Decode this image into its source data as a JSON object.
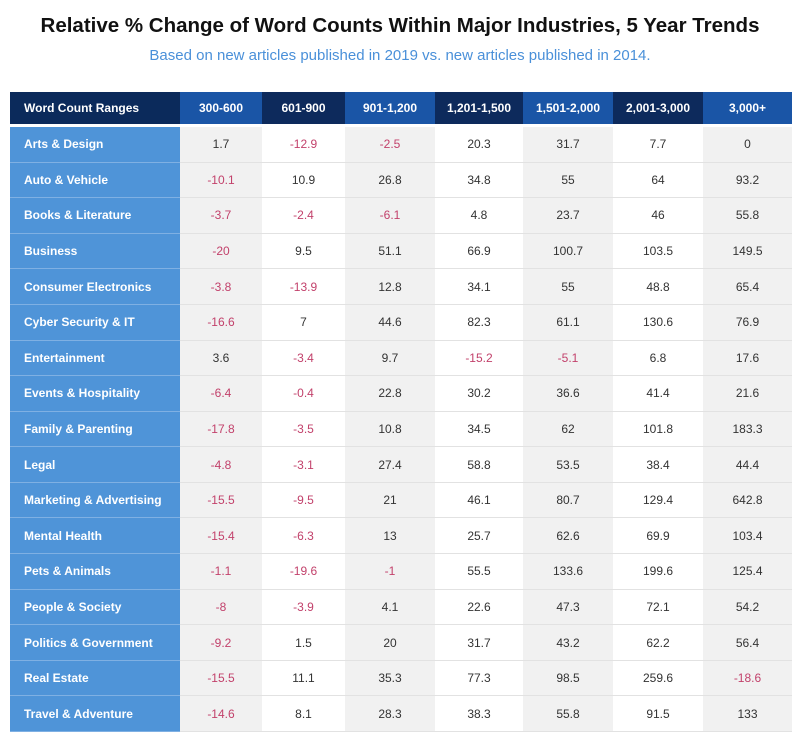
{
  "title": "Relative % Change of Word Counts Within Major Industries, 5 Year Trends",
  "subtitle": "Based on new articles published in 2019 vs. new articles published in 2014.",
  "table": {
    "header": [
      "Word Count Ranges",
      "300-600",
      "601-900",
      "901-1,200",
      "1,201-1,500",
      "1,501-2,000",
      "2,001-3,000",
      "3,000+"
    ],
    "rows": [
      [
        "Arts & Design",
        1.7,
        -12.9,
        -2.5,
        20.3,
        31.7,
        7.7,
        0
      ],
      [
        "Auto & Vehicle",
        -10.1,
        10.9,
        26.8,
        34.8,
        55,
        64,
        93.2
      ],
      [
        "Books & Literature",
        -3.7,
        -2.4,
        -6.1,
        4.8,
        23.7,
        46,
        55.8
      ],
      [
        "Business",
        -20,
        9.5,
        51.1,
        66.9,
        100.7,
        103.5,
        149.5
      ],
      [
        "Consumer Electronics",
        -3.8,
        -13.9,
        12.8,
        34.1,
        55,
        48.8,
        65.4
      ],
      [
        "Cyber Security & IT",
        -16.6,
        7,
        44.6,
        82.3,
        61.1,
        130.6,
        76.9
      ],
      [
        "Entertainment",
        3.6,
        -3.4,
        9.7,
        -15.2,
        -5.1,
        6.8,
        17.6
      ],
      [
        "Events & Hospitality",
        -6.4,
        -0.4,
        22.8,
        30.2,
        36.6,
        41.4,
        21.6
      ],
      [
        "Family & Parenting",
        -17.8,
        -3.5,
        10.8,
        34.5,
        62,
        101.8,
        183.3
      ],
      [
        "Legal",
        -4.8,
        -3.1,
        27.4,
        58.8,
        53.5,
        38.4,
        44.4
      ],
      [
        "Marketing & Advertising",
        -15.5,
        -9.5,
        21,
        46.1,
        80.7,
        129.4,
        642.8
      ],
      [
        "Mental Health",
        -15.4,
        -6.3,
        13,
        25.7,
        62.6,
        69.9,
        103.4
      ],
      [
        "Pets & Animals",
        -1.1,
        -19.6,
        -1,
        55.5,
        133.6,
        199.6,
        125.4
      ],
      [
        "People & Society",
        -8,
        -3.9,
        4.1,
        22.6,
        47.3,
        72.1,
        54.2
      ],
      [
        "Politics & Government",
        -9.2,
        1.5,
        20,
        31.7,
        43.2,
        62.2,
        56.4
      ],
      [
        "Real Estate",
        -15.5,
        11.1,
        35.3,
        77.3,
        98.5,
        259.6,
        -18.6
      ],
      [
        "Travel & Adventure",
        -14.6,
        8.1,
        28.3,
        38.3,
        55.8,
        91.5,
        133
      ]
    ]
  }
}
